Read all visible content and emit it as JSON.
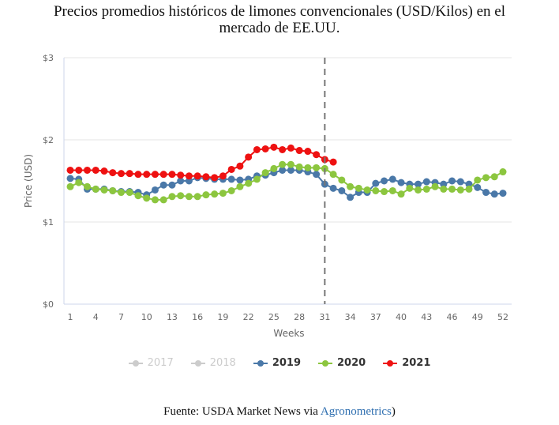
{
  "title_lines": [
    "Precios promedios históricos de limones convencionales (USD/Kilos) en el",
    "mercado de EE.UU."
  ],
  "footer": {
    "prefix": "Fuente: USDA Market News via ",
    "link": "Agronometrics",
    "suffix": ")"
  },
  "chart_data": {
    "type": "line",
    "title": "Precios promedios históricos de limones convencionales (USD/Kilos) en el mercado de EE.UU.",
    "xlabel": "Weeks",
    "ylabel": "Price (USD)",
    "ylim": [
      0,
      3
    ],
    "xlim": [
      1,
      52
    ],
    "y_ticks": [
      0,
      1,
      2,
      3
    ],
    "y_tick_labels": [
      "$0",
      "$1",
      "$2",
      "$3"
    ],
    "x_ticks": [
      1,
      4,
      7,
      10,
      13,
      16,
      19,
      22,
      25,
      28,
      31,
      34,
      37,
      40,
      43,
      46,
      49,
      52
    ],
    "grid": true,
    "legend_position": "bottom",
    "reference_line": {
      "x": 31,
      "style": "dashed",
      "color": "#777777"
    },
    "series": [
      {
        "name": "2017",
        "color": "#cccccc",
        "visible": false,
        "values": []
      },
      {
        "name": "2018",
        "color": "#cccccc",
        "visible": false,
        "values": []
      },
      {
        "name": "2019",
        "color": "#4a78a8",
        "visible": true,
        "values": [
          1.53,
          1.52,
          1.4,
          1.4,
          1.4,
          1.38,
          1.37,
          1.37,
          1.36,
          1.33,
          1.39,
          1.45,
          1.45,
          1.5,
          1.5,
          1.54,
          1.53,
          1.52,
          1.52,
          1.52,
          1.51,
          1.52,
          1.56,
          1.57,
          1.6,
          1.63,
          1.63,
          1.63,
          1.61,
          1.58,
          1.46,
          1.41,
          1.38,
          1.3,
          1.36,
          1.36,
          1.47,
          1.5,
          1.52,
          1.48,
          1.46,
          1.46,
          1.49,
          1.48,
          1.46,
          1.5,
          1.49,
          1.46,
          1.42,
          1.36,
          1.34,
          1.35
        ]
      },
      {
        "name": "2020",
        "color": "#8cc63f",
        "visible": true,
        "values": [
          1.43,
          1.48,
          1.43,
          1.4,
          1.39,
          1.38,
          1.36,
          1.36,
          1.32,
          1.29,
          1.27,
          1.27,
          1.31,
          1.32,
          1.31,
          1.31,
          1.33,
          1.34,
          1.35,
          1.38,
          1.43,
          1.47,
          1.52,
          1.6,
          1.65,
          1.7,
          1.7,
          1.67,
          1.66,
          1.66,
          1.65,
          1.58,
          1.51,
          1.43,
          1.41,
          1.39,
          1.38,
          1.37,
          1.38,
          1.34,
          1.41,
          1.39,
          1.4,
          1.43,
          1.4,
          1.4,
          1.39,
          1.4,
          1.51,
          1.54,
          1.55,
          1.61
        ]
      },
      {
        "name": "2021",
        "color": "#ee1111",
        "visible": true,
        "values": [
          1.63,
          1.63,
          1.63,
          1.63,
          1.62,
          1.6,
          1.59,
          1.59,
          1.58,
          1.58,
          1.58,
          1.58,
          1.58,
          1.57,
          1.56,
          1.56,
          1.55,
          1.54,
          1.56,
          1.64,
          1.68,
          1.79,
          1.88,
          1.89,
          1.91,
          1.88,
          1.9,
          1.87,
          1.86,
          1.82,
          1.76,
          1.73
        ]
      }
    ]
  }
}
